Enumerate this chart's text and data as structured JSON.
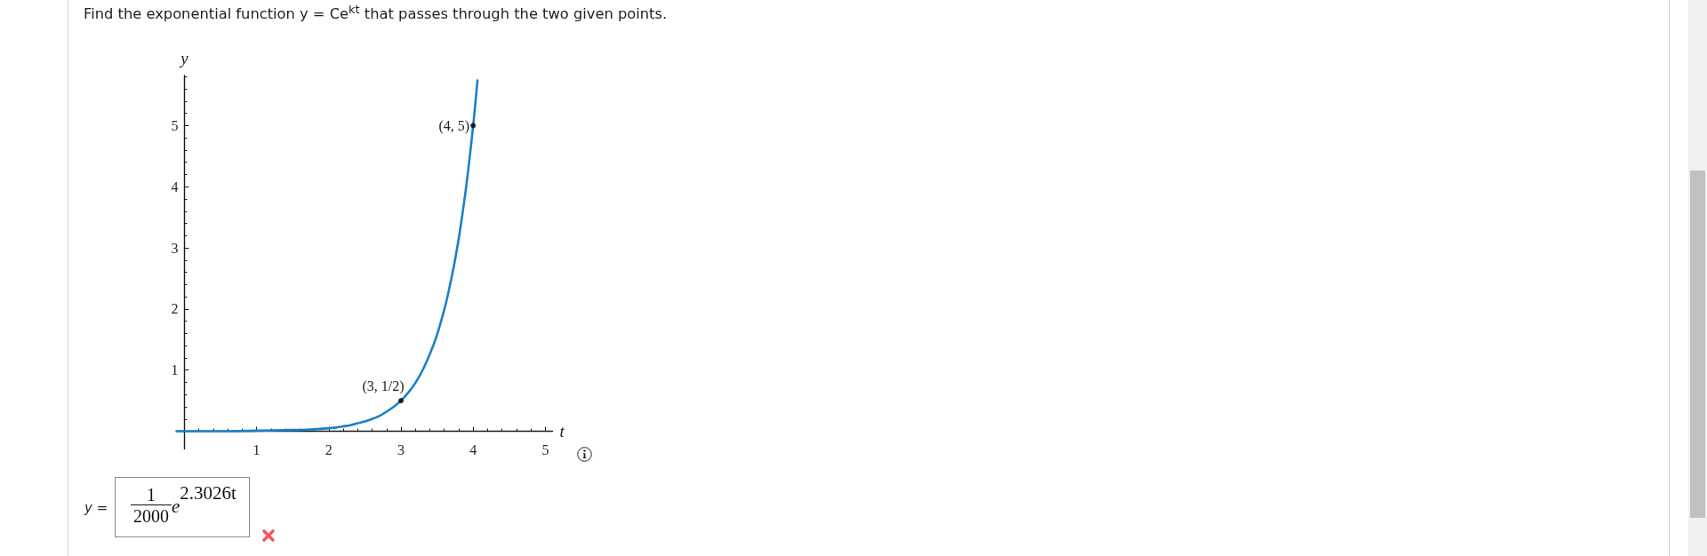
{
  "chart_data": {
    "type": "line",
    "title": "Find the exponential function y = Ce$^{kt}$ that passes through the two given points.",
    "xlabel": "t",
    "ylabel": "y",
    "series": [
      {
        "color": "#1b7fc8",
        "marker": "none",
        "line_style": "solid",
        "x": [
          -0.11,
          0.5,
          1,
          1.5,
          1.75,
          2,
          2.1,
          2.2,
          2.3,
          2.4,
          2.5,
          2.6,
          2.7,
          2.8,
          2.9,
          3,
          3.1,
          3.2,
          3.3,
          3.4,
          3.5,
          3.6,
          3.65,
          3.7,
          3.75,
          3.8,
          3.85,
          3.9,
          3.95,
          4,
          4.03,
          4.06
        ],
        "values": [
          0,
          0,
          0.01,
          0.02,
          0.03,
          0.05,
          0.06,
          0.08,
          0.1,
          0.13,
          0.16,
          0.2,
          0.25,
          0.32,
          0.4,
          0.5,
          0.63,
          0.79,
          1,
          1.26,
          1.58,
          1.99,
          2.23,
          2.51,
          2.81,
          3.15,
          3.54,
          3.97,
          4.46,
          5,
          5.36,
          5.74
        ]
      },
      {
        "type": "scatter",
        "color": "#000000",
        "marker": "circle",
        "x": [
          3,
          4
        ],
        "values": [
          0.5,
          5
        ]
      }
    ],
    "xlim": [
      -0.11,
      5.1
    ],
    "ylim": [
      -0.29,
      5.82
    ],
    "xticks": [
      {
        "value": 0.2,
        "label": null
      },
      {
        "value": 0.4,
        "label": null
      },
      {
        "value": 0.6,
        "label": null
      },
      {
        "value": 0.8,
        "label": null
      },
      1,
      {
        "value": 1.2,
        "label": null
      },
      {
        "value": 1.4,
        "label": null
      },
      {
        "value": 1.6,
        "label": null
      },
      {
        "value": 1.8,
        "label": null
      },
      2,
      {
        "value": 2.2,
        "label": null
      },
      {
        "value": 2.4,
        "label": null
      },
      {
        "value": 2.6,
        "label": null
      },
      {
        "value": 2.8,
        "label": null
      },
      3,
      {
        "value": 3.2,
        "label": null
      },
      {
        "value": 3.4,
        "label": null
      },
      {
        "value": 3.6,
        "label": null
      },
      {
        "value": 3.8,
        "label": null
      },
      4,
      {
        "value": 4.2,
        "label": null
      },
      {
        "value": 4.4,
        "label": null
      },
      {
        "value": 4.6,
        "label": null
      },
      {
        "value": 4.8,
        "label": null
      },
      5
    ],
    "yticks": [
      {
        "value": 0.2,
        "label": null
      },
      {
        "value": 0.4,
        "label": null
      },
      {
        "value": 0.6,
        "label": null
      },
      {
        "value": 0.8,
        "label": null
      },
      1,
      {
        "value": 1.2,
        "label": null
      },
      {
        "value": 1.4,
        "label": null
      },
      {
        "value": 1.6,
        "label": null
      },
      {
        "value": 1.8,
        "label": null
      },
      2,
      {
        "value": 2.2,
        "label": null
      },
      {
        "value": 2.4,
        "label": null
      },
      {
        "value": 2.6,
        "label": null
      },
      {
        "value": 2.8,
        "label": null
      },
      3,
      {
        "value": 3.2,
        "label": null
      },
      {
        "value": 3.4,
        "label": null
      },
      {
        "value": 3.6,
        "label": null
      },
      {
        "value": 3.8,
        "label": null
      },
      4,
      {
        "value": 4.2,
        "label": null
      },
      {
        "value": 4.4,
        "label": null
      },
      {
        "value": 4.6,
        "label": null
      },
      {
        "value": 4.8,
        "label": null
      },
      5,
      {
        "value": 5.2,
        "label": null
      },
      {
        "value": 5.4,
        "label": null
      },
      {
        "value": 5.6,
        "label": null
      },
      {
        "value": 5.8,
        "label": null
      }
    ],
    "annotations": [
      {
        "text": "(3, 1/2)",
        "x": 3,
        "y": 0.5
      },
      {
        "text": "(4, 5)",
        "x": 4,
        "y": 5
      },
      "y =",
      "1",
      "2000",
      "e$^{2.3026t}$"
    ]
  }
}
